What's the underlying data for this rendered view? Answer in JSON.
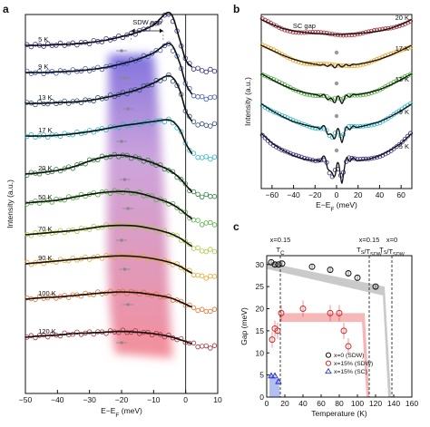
{
  "chart_data": [
    {
      "panel": "a",
      "type": "line",
      "xlabel": "E−E_F (meV)",
      "ylabel": "Intensity (a.u.)",
      "xlim": [
        -50,
        10
      ],
      "xticks": [
        -50,
        -40,
        -30,
        -20,
        -10,
        0,
        10
      ],
      "annotation": "SDW gap",
      "x": [
        -50,
        -45,
        -40,
        -35,
        -30,
        -25,
        -20,
        -15,
        -10,
        -5,
        -2,
        0,
        2,
        5
      ],
      "series": [
        {
          "name": "5 K",
          "color": "#3a2a8a",
          "values": [
            0.0,
            0.0,
            0.01,
            0.02,
            0.04,
            0.07,
            0.12,
            0.18,
            0.28,
            0.45,
            0.1,
            -0.2,
            -0.3,
            -0.35
          ]
        },
        {
          "name": "9 K",
          "color": "#3d55b3",
          "values": [
            0.0,
            0.0,
            0.01,
            0.02,
            0.04,
            0.07,
            0.12,
            0.18,
            0.27,
            0.4,
            0.15,
            -0.15,
            -0.3,
            -0.35
          ]
        },
        {
          "name": "13 K",
          "color": "#2a4f78",
          "values": [
            0.0,
            0.0,
            0.01,
            0.02,
            0.04,
            0.08,
            0.13,
            0.19,
            0.28,
            0.38,
            0.2,
            -0.1,
            -0.25,
            -0.3
          ]
        },
        {
          "name": "17 K",
          "color": "#2ab7c9",
          "values": [
            0.0,
            0.0,
            0.01,
            0.03,
            0.06,
            0.1,
            0.14,
            0.17,
            0.2,
            0.22,
            0.1,
            -0.1,
            -0.25,
            -0.3
          ]
        },
        {
          "name": "20 K",
          "color": "#2f7f3a",
          "values": [
            0.0,
            0.02,
            0.05,
            0.1,
            0.18,
            0.24,
            0.26,
            0.22,
            0.15,
            0.05,
            -0.05,
            -0.15,
            -0.25,
            -0.3
          ]
        },
        {
          "name": "50 K",
          "color": "#4fae3c",
          "values": [
            0.0,
            0.02,
            0.04,
            0.08,
            0.12,
            0.15,
            0.16,
            0.14,
            0.08,
            0.0,
            -0.08,
            -0.15,
            -0.22,
            -0.28
          ]
        },
        {
          "name": "70 K",
          "color": "#a6c93a",
          "values": [
            0.0,
            0.02,
            0.04,
            0.06,
            0.09,
            0.12,
            0.13,
            0.12,
            0.08,
            0.02,
            -0.04,
            -0.1,
            -0.16,
            -0.22
          ]
        },
        {
          "name": "90 K",
          "color": "#e6a52c",
          "values": [
            0.0,
            0.02,
            0.04,
            0.06,
            0.08,
            0.1,
            0.11,
            0.1,
            0.07,
            0.02,
            -0.03,
            -0.08,
            -0.13,
            -0.18
          ]
        },
        {
          "name": "100 K",
          "color": "#e8702a",
          "values": [
            0.0,
            0.02,
            0.03,
            0.05,
            0.07,
            0.09,
            0.1,
            0.09,
            0.06,
            0.02,
            -0.03,
            -0.07,
            -0.11,
            -0.16
          ]
        },
        {
          "name": "120 K",
          "color": "#a8303a",
          "values": [
            0.0,
            0.02,
            0.03,
            0.05,
            0.06,
            0.07,
            0.08,
            0.07,
            0.05,
            0.01,
            -0.03,
            -0.06,
            -0.09,
            -0.13
          ]
        }
      ]
    },
    {
      "panel": "b",
      "type": "line",
      "xlabel": "E−E_F (meV)",
      "ylabel": "Intensity (a.u.)",
      "xlim": [
        -70,
        70
      ],
      "xticks": [
        -60,
        -40,
        -20,
        0,
        20,
        40,
        60
      ],
      "annotation": "SC gap",
      "x": [
        -70,
        -60,
        -50,
        -40,
        -30,
        -20,
        -10,
        -5,
        0,
        5,
        10,
        20,
        30,
        40,
        50,
        60,
        70
      ],
      "series": [
        {
          "name": "20 K",
          "color": "#a8303a",
          "values": [
            0.3,
            0.2,
            0.12,
            0.07,
            0.04,
            0.02,
            0.01,
            0.0,
            0.0,
            0.0,
            0.01,
            0.02,
            0.04,
            0.07,
            0.12,
            0.2,
            0.3
          ]
        },
        {
          "name": "17 K",
          "color": "#e6a52c",
          "values": [
            0.4,
            0.3,
            0.2,
            0.12,
            0.06,
            0.02,
            0.0,
            -0.01,
            -0.02,
            -0.01,
            0.0,
            0.02,
            0.06,
            0.12,
            0.2,
            0.3,
            0.4
          ]
        },
        {
          "name": "13 K",
          "color": "#4fae3c",
          "values": [
            0.45,
            0.33,
            0.22,
            0.13,
            0.07,
            0.03,
            0.0,
            -0.1,
            -0.05,
            -0.1,
            0.0,
            0.03,
            0.07,
            0.13,
            0.22,
            0.33,
            0.45
          ]
        },
        {
          "name": "9 K",
          "color": "#2ab7c9",
          "values": [
            0.5,
            0.36,
            0.24,
            0.14,
            0.08,
            0.03,
            0.02,
            -0.2,
            -0.05,
            -0.2,
            0.02,
            0.03,
            0.08,
            0.14,
            0.24,
            0.36,
            0.5
          ]
        },
        {
          "name": "5 K",
          "color": "#3a2a8a",
          "values": [
            0.6,
            0.4,
            0.26,
            0.15,
            0.08,
            0.05,
            0.1,
            -0.3,
            -0.05,
            -0.3,
            0.1,
            0.05,
            0.08,
            0.15,
            0.26,
            0.4,
            0.6
          ]
        }
      ]
    },
    {
      "panel": "c",
      "type": "scatter",
      "xlabel": "Temperature (K)",
      "ylabel": "Gap (meV)",
      "xlim": [
        0,
        160
      ],
      "ylim": [
        0,
        32
      ],
      "xticks": [
        0,
        20,
        40,
        60,
        80,
        100,
        120,
        140,
        160
      ],
      "yticks": [
        0,
        5,
        10,
        15,
        20,
        25,
        30
      ],
      "vlines": [
        {
          "x": 15,
          "label_top": "x=0.15",
          "label_sub": "T_C"
        },
        {
          "x": 113,
          "label_top": "x=0.15",
          "label_sub": "T_S/T_SDW"
        },
        {
          "x": 138,
          "label_top": "x=0",
          "label_sub": "T_S/T_SDW"
        }
      ],
      "legend_position": "bottom-right",
      "series": [
        {
          "name": "x=0 (SDW)",
          "color": "#111111",
          "marker": "circle",
          "x": [
            5,
            9,
            13,
            17,
            50,
            70,
            90,
            100,
            120
          ],
          "y": [
            30.5,
            30,
            30,
            30.2,
            29.5,
            28.8,
            28,
            27,
            25
          ]
        },
        {
          "name": "x=15% (SDW)",
          "color": "#d12b2b",
          "marker": "circle",
          "x": [
            6,
            9,
            12,
            16,
            40,
            70,
            80,
            85,
            90
          ],
          "y": [
            13,
            15.5,
            15,
            19,
            20,
            19,
            19,
            15,
            11.5
          ]
        },
        {
          "name": "x=15% (SC)",
          "color": "#2233cc",
          "marker": "triangle",
          "x": [
            5,
            9,
            13
          ],
          "y": [
            4.8,
            4.8,
            3.5
          ]
        }
      ]
    }
  ],
  "labels": {
    "panel_a": "a",
    "panel_b": "b",
    "panel_c": "c"
  }
}
